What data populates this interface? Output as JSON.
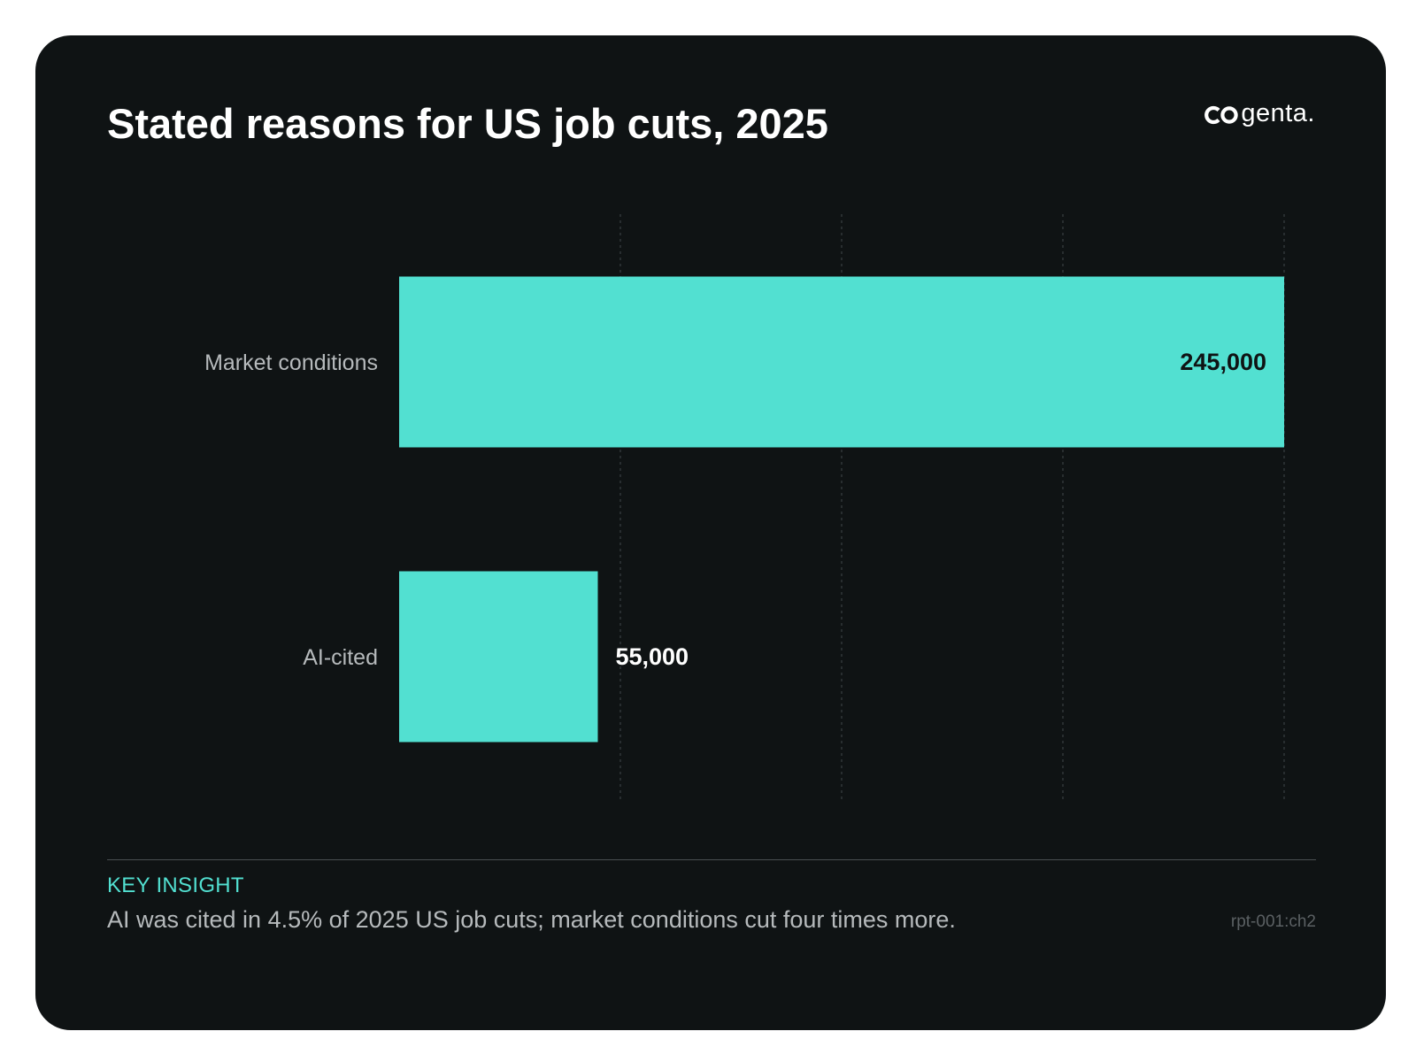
{
  "card": {
    "title": "Stated reasons for US job cuts, 2025",
    "logo_text": "genta."
  },
  "colors": {
    "background": "#0f1314",
    "bar": "#52e0d1",
    "title": "#ffffff",
    "category_label": "#b6babc",
    "grid": "#3a3f42",
    "accent": "#52e0d1"
  },
  "chart_data": {
    "type": "bar",
    "orientation": "horizontal",
    "title": "Stated reasons for US job cuts, 2025",
    "categories": [
      "Market conditions",
      "AI-cited"
    ],
    "values": [
      245000,
      55000
    ],
    "data_labels": [
      "245,000",
      "55,000"
    ],
    "xlim": [
      0,
      245000
    ],
    "grid": true,
    "grid_style": "dotted vertical",
    "legend": "none"
  },
  "insight": {
    "label": "KEY INSIGHT",
    "text": "AI was cited in 4.5% of 2025 US job cuts; market conditions cut four times more.",
    "ref": "rpt-001:ch2"
  }
}
